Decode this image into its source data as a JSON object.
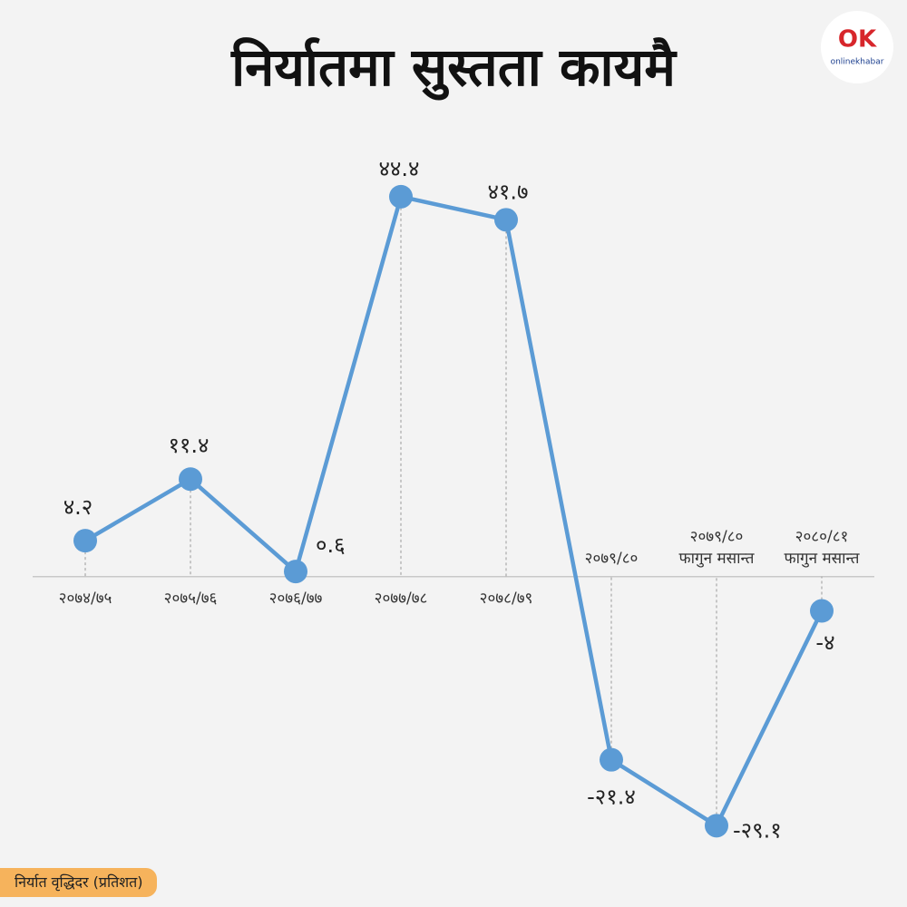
{
  "title": "निर्यातमा सुस्तता कायमै",
  "logo": {
    "mark": "OK",
    "brand": "onlinekhabar"
  },
  "footer": "निर्यात वृद्धिदर (प्रतिशत)",
  "chart_data": {
    "type": "line",
    "categories": [
      "२०७४/७५",
      "२०७५/७६",
      "२०७६/७७",
      "२०७७/७८",
      "२०७८/७९",
      "२०७९/८०",
      "२०७९/८०\nफागुन मसान्त",
      "२०८०/८१\nफागुन मसान्त"
    ],
    "values": [
      4.2,
      11.4,
      0.6,
      44.4,
      41.7,
      -21.4,
      -29.1,
      -4
    ],
    "value_labels": [
      "४.२",
      "११.४",
      "०.६",
      "४४.४",
      "४१.७",
      "-२१.४",
      "-२९.१",
      "-४"
    ],
    "color": "#5b9bd5",
    "ylim": [
      -35,
      50
    ]
  }
}
